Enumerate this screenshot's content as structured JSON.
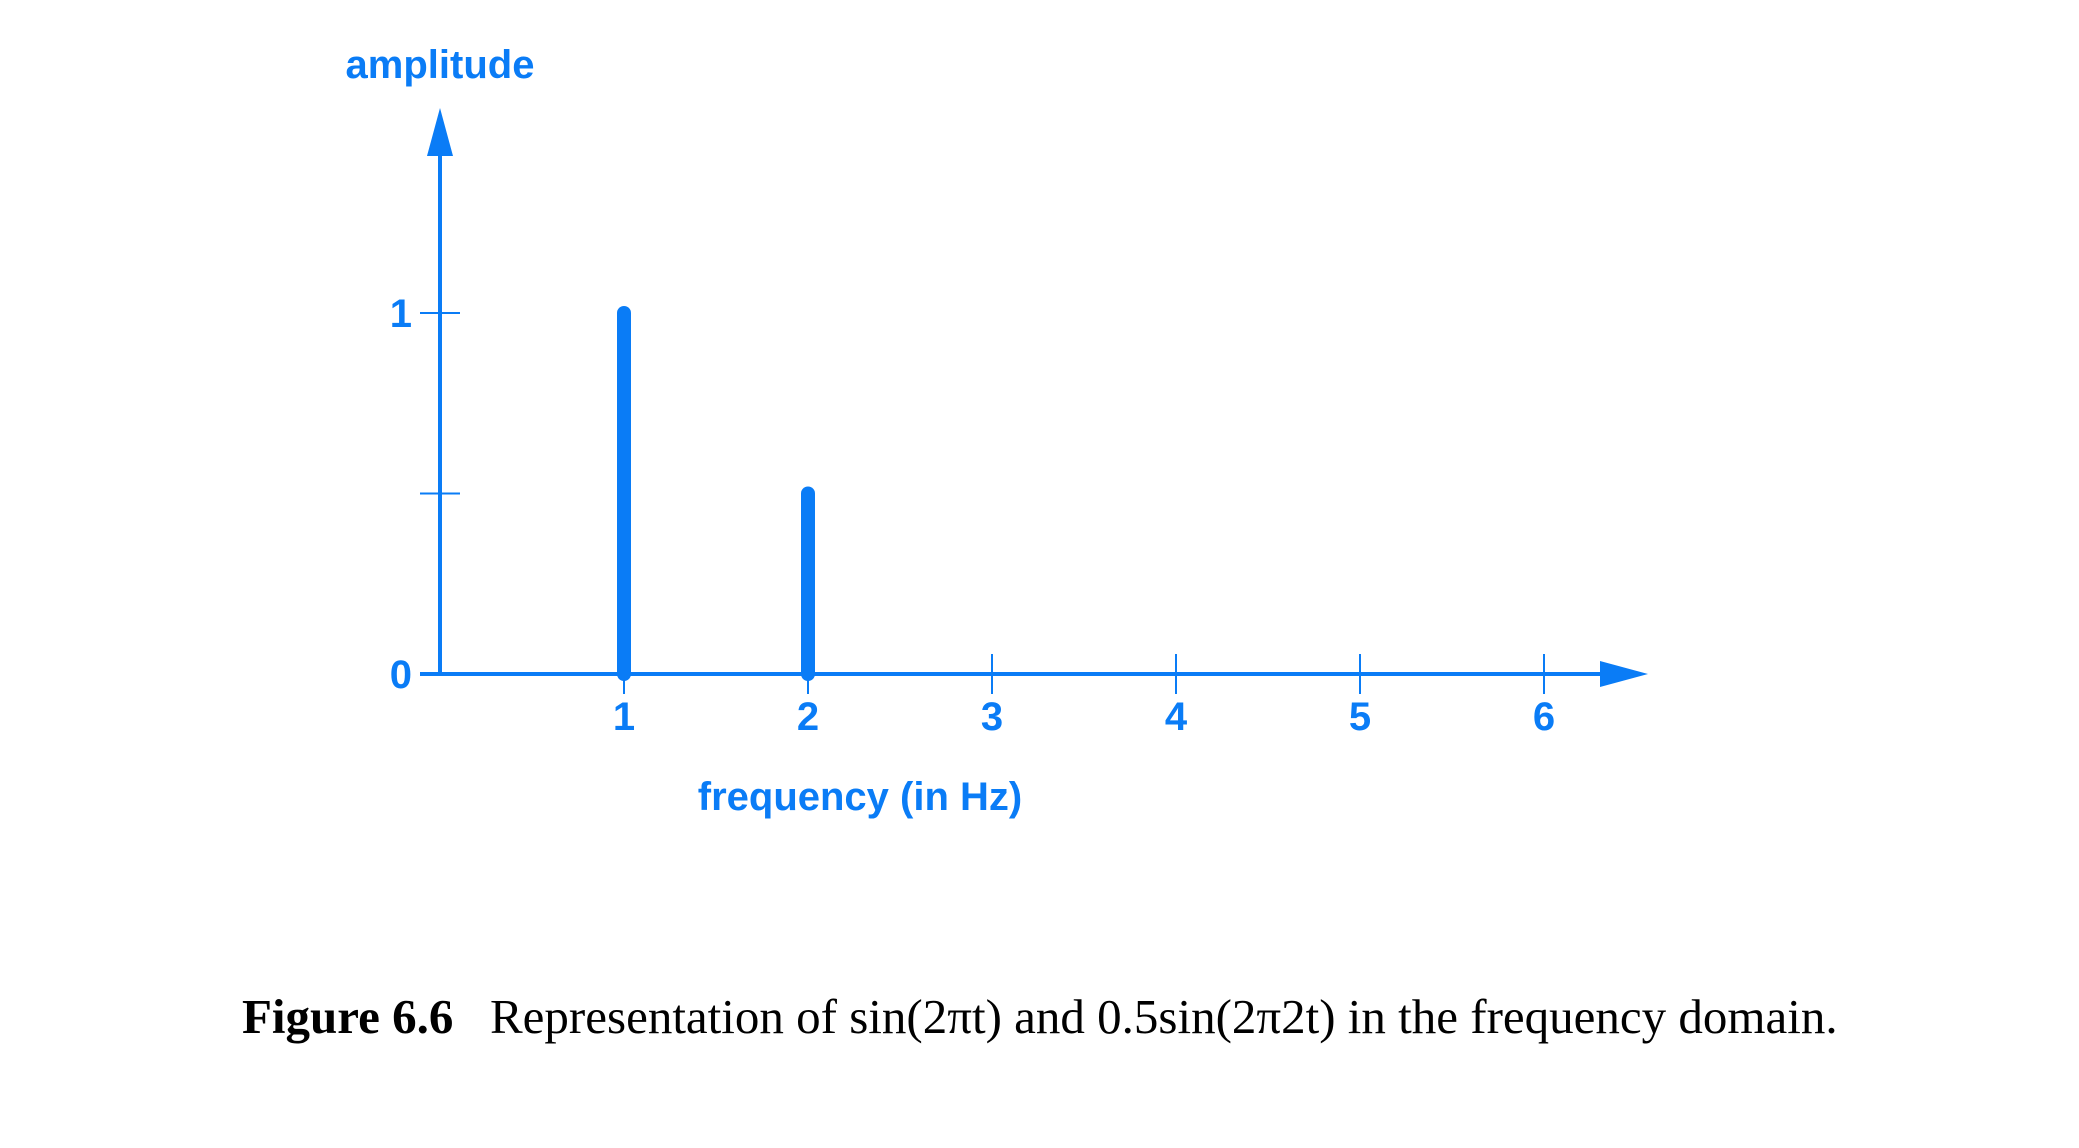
{
  "chart_data": {
    "type": "bar",
    "x": [
      1,
      2
    ],
    "values": [
      1,
      0.5
    ],
    "xlabel": "frequency (in Hz)",
    "ylabel": "amplitude",
    "xticks": [
      "1",
      "2",
      "3",
      "4",
      "5",
      "6"
    ],
    "yticks": [
      "0",
      "1"
    ],
    "ylim": [
      0,
      1
    ],
    "xlim": [
      0,
      6
    ],
    "grid": false,
    "color": "#0a7cf6"
  },
  "caption": {
    "label": "Figure 6.6",
    "text": "Representation of sin(2πt) and 0.5sin(2π2t) in the frequency domain."
  }
}
